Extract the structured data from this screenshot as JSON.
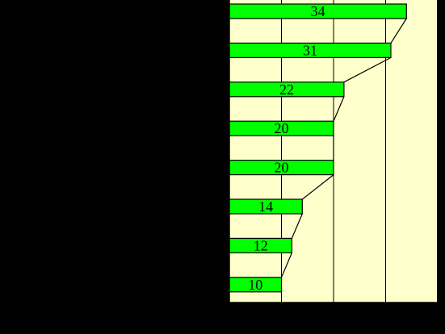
{
  "chart_data": {
    "type": "bar",
    "orientation": "horizontal",
    "title": "",
    "xlabel": "",
    "ylabel": "",
    "values": [
      34,
      31,
      22,
      20,
      20,
      14,
      12,
      10
    ],
    "value_labels": [
      "34",
      "31",
      "22",
      "20",
      "20",
      "14",
      "12",
      "10"
    ],
    "xlim": [
      0,
      40
    ],
    "grid": true,
    "grid_direction": "vertical",
    "connector_lines": true,
    "legend": "none",
    "colors": {
      "page_background": "#000000",
      "plot_background": "#FFFFCC",
      "bar_fill": "#00FF00",
      "bar_stroke": "#000000",
      "grid": "#000000",
      "connector": "#000000",
      "label_text": "#000000"
    }
  }
}
